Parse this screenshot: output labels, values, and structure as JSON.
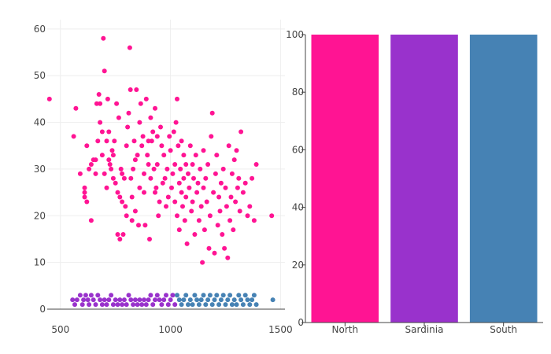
{
  "chart_data": [
    {
      "type": "scatter",
      "xlim": [
        440,
        1520
      ],
      "ylim": [
        0,
        62
      ],
      "xticks": [
        500,
        1000,
        1500
      ],
      "yticks": [
        0,
        10,
        20,
        30,
        40,
        50,
        60
      ],
      "grid": true,
      "series": [
        {
          "color": "#ff1493",
          "points": [
            [
              450,
              45
            ],
            [
              560,
              37
            ],
            [
              590,
              29
            ],
            [
              570,
              43
            ],
            [
              610,
              26
            ],
            [
              610,
              25
            ],
            [
              610,
              24
            ],
            [
              620,
              23
            ],
            [
              620,
              35
            ],
            [
              630,
              30
            ],
            [
              640,
              31
            ],
            [
              640,
              19
            ],
            [
              650,
              32
            ],
            [
              660,
              32
            ],
            [
              660,
              29
            ],
            [
              665,
              44
            ],
            [
              670,
              36
            ],
            [
              675,
              46
            ],
            [
              680,
              44
            ],
            [
              680,
              40
            ],
            [
              690,
              38
            ],
            [
              690,
              33
            ],
            [
              695,
              58
            ],
            [
              700,
              51
            ],
            [
              700,
              29
            ],
            [
              710,
              26
            ],
            [
              710,
              36
            ],
            [
              715,
              45
            ],
            [
              720,
              38
            ],
            [
              720,
              32
            ],
            [
              725,
              31
            ],
            [
              730,
              30
            ],
            [
              735,
              34
            ],
            [
              740,
              28
            ],
            [
              740,
              33
            ],
            [
              745,
              36
            ],
            [
              750,
              27
            ],
            [
              755,
              44
            ],
            [
              760,
              16
            ],
            [
              760,
              25
            ],
            [
              765,
              41
            ],
            [
              770,
              24
            ],
            [
              770,
              15
            ],
            [
              775,
              30
            ],
            [
              780,
              29
            ],
            [
              780,
              23
            ],
            [
              785,
              16
            ],
            [
              790,
              28
            ],
            [
              795,
              22
            ],
            [
              800,
              20
            ],
            [
              800,
              35
            ],
            [
              805,
              39
            ],
            [
              810,
              42
            ],
            [
              815,
              56
            ],
            [
              818,
              47
            ],
            [
              820,
              28
            ],
            [
              825,
              24
            ],
            [
              825,
              19
            ],
            [
              830,
              30
            ],
            [
              835,
              36
            ],
            [
              840,
              32
            ],
            [
              840,
              21
            ],
            [
              845,
              47
            ],
            [
              850,
              33
            ],
            [
              855,
              18
            ],
            [
              860,
              26
            ],
            [
              860,
              40
            ],
            [
              865,
              44
            ],
            [
              870,
              35
            ],
            [
              875,
              37
            ],
            [
              880,
              25
            ],
            [
              880,
              29
            ],
            [
              885,
              18
            ],
            [
              890,
              45
            ],
            [
              895,
              33
            ],
            [
              900,
              31
            ],
            [
              900,
              36
            ],
            [
              905,
              15
            ],
            [
              910,
              28
            ],
            [
              910,
              41
            ],
            [
              915,
              36
            ],
            [
              920,
              38
            ],
            [
              925,
              30
            ],
            [
              930,
              25
            ],
            [
              930,
              43
            ],
            [
              935,
              26
            ],
            [
              940,
              31
            ],
            [
              940,
              37
            ],
            [
              945,
              20
            ],
            [
              950,
              23
            ],
            [
              955,
              39
            ],
            [
              960,
              35
            ],
            [
              965,
              27
            ],
            [
              970,
              33
            ],
            [
              975,
              28
            ],
            [
              980,
              22
            ],
            [
              985,
              30
            ],
            [
              990,
              24
            ],
            [
              995,
              37
            ],
            [
              1000,
              34
            ],
            [
              1005,
              26
            ],
            [
              1010,
              29
            ],
            [
              1015,
              38
            ],
            [
              1020,
              23
            ],
            [
              1020,
              31
            ],
            [
              1025,
              40
            ],
            [
              1030,
              45
            ],
            [
              1030,
              20
            ],
            [
              1035,
              35
            ],
            [
              1040,
              27
            ],
            [
              1040,
              17
            ],
            [
              1045,
              30
            ],
            [
              1050,
              25
            ],
            [
              1050,
              36
            ],
            [
              1055,
              22
            ],
            [
              1060,
              28
            ],
            [
              1060,
              33
            ],
            [
              1065,
              19
            ],
            [
              1070,
              31
            ],
            [
              1070,
              24
            ],
            [
              1075,
              14
            ],
            [
              1080,
              29
            ],
            [
              1085,
              26
            ],
            [
              1090,
              35
            ],
            [
              1095,
              21
            ],
            [
              1100,
              31
            ],
            [
              1100,
              23
            ],
            [
              1105,
              28
            ],
            [
              1110,
              16
            ],
            [
              1115,
              33
            ],
            [
              1120,
              25
            ],
            [
              1125,
              27
            ],
            [
              1130,
              19
            ],
            [
              1135,
              30
            ],
            [
              1140,
              22
            ],
            [
              1145,
              10
            ],
            [
              1150,
              26
            ],
            [
              1150,
              34
            ],
            [
              1155,
              17
            ],
            [
              1160,
              28
            ],
            [
              1165,
              23
            ],
            [
              1170,
              31
            ],
            [
              1175,
              13
            ],
            [
              1180,
              20
            ],
            [
              1185,
              37
            ],
            [
              1190,
              42
            ],
            [
              1195,
              25
            ],
            [
              1200,
              12
            ],
            [
              1205,
              29
            ],
            [
              1210,
              33
            ],
            [
              1215,
              18
            ],
            [
              1220,
              24
            ],
            [
              1225,
              21
            ],
            [
              1230,
              27
            ],
            [
              1235,
              16
            ],
            [
              1240,
              30
            ],
            [
              1245,
              13
            ],
            [
              1250,
              26
            ],
            [
              1255,
              22
            ],
            [
              1260,
              11
            ],
            [
              1265,
              35
            ],
            [
              1270,
              19
            ],
            [
              1275,
              24
            ],
            [
              1280,
              29
            ],
            [
              1285,
              17
            ],
            [
              1290,
              32
            ],
            [
              1295,
              23
            ],
            [
              1300,
              34
            ],
            [
              1305,
              26
            ],
            [
              1310,
              28
            ],
            [
              1315,
              21
            ],
            [
              1320,
              38
            ],
            [
              1330,
              25
            ],
            [
              1340,
              27
            ],
            [
              1350,
              20
            ],
            [
              1360,
              22
            ],
            [
              1370,
              28
            ],
            [
              1380,
              19
            ],
            [
              1390,
              31
            ],
            [
              1460,
              20
            ]
          ]
        },
        {
          "color": "#9932cc",
          "points": [
            [
              555,
              2
            ],
            [
              565,
              1
            ],
            [
              575,
              2
            ],
            [
              590,
              3
            ],
            [
              600,
              1
            ],
            [
              605,
              2
            ],
            [
              615,
              3
            ],
            [
              625,
              2
            ],
            [
              630,
              1
            ],
            [
              640,
              3
            ],
            [
              650,
              2
            ],
            [
              660,
              1
            ],
            [
              670,
              3
            ],
            [
              680,
              2
            ],
            [
              690,
              1
            ],
            [
              700,
              2
            ],
            [
              710,
              1
            ],
            [
              720,
              2
            ],
            [
              730,
              3
            ],
            [
              740,
              1
            ],
            [
              750,
              2
            ],
            [
              760,
              1
            ],
            [
              770,
              2
            ],
            [
              780,
              1
            ],
            [
              790,
              2
            ],
            [
              800,
              1
            ],
            [
              810,
              3
            ],
            [
              820,
              2
            ],
            [
              830,
              1
            ],
            [
              840,
              2
            ],
            [
              850,
              1
            ],
            [
              860,
              2
            ],
            [
              870,
              1
            ],
            [
              880,
              2
            ],
            [
              890,
              1
            ],
            [
              900,
              2
            ],
            [
              910,
              3
            ],
            [
              920,
              1
            ],
            [
              930,
              2
            ],
            [
              940,
              3
            ],
            [
              950,
              2
            ],
            [
              960,
              1
            ],
            [
              970,
              2
            ],
            [
              980,
              3
            ],
            [
              990,
              1
            ],
            [
              1000,
              2
            ],
            [
              1010,
              3
            ],
            [
              1020,
              1
            ]
          ]
        },
        {
          "color": "#4682b4",
          "points": [
            [
              1030,
              3
            ],
            [
              1040,
              2
            ],
            [
              1050,
              1
            ],
            [
              1060,
              2
            ],
            [
              1070,
              3
            ],
            [
              1080,
              1
            ],
            [
              1090,
              2
            ],
            [
              1100,
              1
            ],
            [
              1110,
              3
            ],
            [
              1120,
              2
            ],
            [
              1130,
              1
            ],
            [
              1140,
              2
            ],
            [
              1150,
              3
            ],
            [
              1160,
              1
            ],
            [
              1170,
              2
            ],
            [
              1180,
              3
            ],
            [
              1190,
              1
            ],
            [
              1200,
              2
            ],
            [
              1210,
              3
            ],
            [
              1220,
              1
            ],
            [
              1230,
              2
            ],
            [
              1240,
              3
            ],
            [
              1250,
              1
            ],
            [
              1260,
              2
            ],
            [
              1270,
              3
            ],
            [
              1280,
              1
            ],
            [
              1290,
              2
            ],
            [
              1300,
              1
            ],
            [
              1310,
              3
            ],
            [
              1320,
              2
            ],
            [
              1330,
              1
            ],
            [
              1340,
              3
            ],
            [
              1350,
              2
            ],
            [
              1360,
              1
            ],
            [
              1370,
              2
            ],
            [
              1380,
              3
            ],
            [
              1390,
              1
            ],
            [
              1465,
              2
            ]
          ]
        }
      ]
    },
    {
      "type": "bar",
      "categories": [
        "North",
        "Sardinia",
        "South"
      ],
      "values": [
        100,
        100,
        100
      ],
      "colors": [
        "#ff1493",
        "#9932cc",
        "#4682b4"
      ],
      "ylim": [
        0,
        100
      ],
      "yticks": [
        0,
        20,
        40,
        60,
        80,
        100
      ],
      "grid": false
    }
  ]
}
